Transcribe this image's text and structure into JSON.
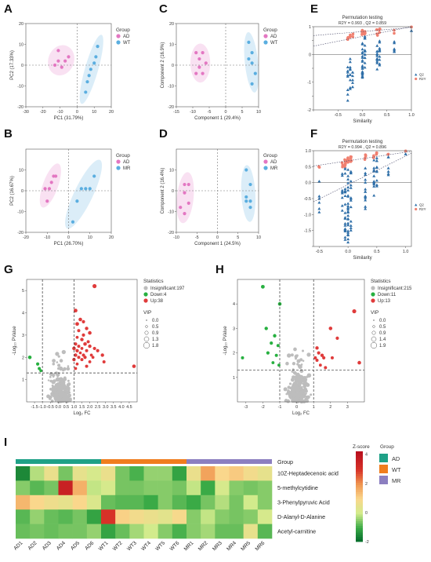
{
  "panels": {
    "A": "A",
    "B": "B",
    "C": "C",
    "D": "D",
    "E": "E",
    "F": "F",
    "G": "G",
    "H": "H",
    "I": "I"
  },
  "colors": {
    "AD": "#e377c2",
    "WT": "#5aaee0",
    "MR": "#5aaee0",
    "up": "#e03b3b",
    "down": "#27b040",
    "insig": "#bdbdbd",
    "q2": "#2f6fa8",
    "r2y": "#f08070",
    "grpAD": "#1fa187",
    "grpWT": "#f07d1e",
    "grpMR": "#8c7fc0"
  },
  "chart_data": [
    {
      "id": "A",
      "type": "scatter",
      "xlabel": "PC1 (31.79%)",
      "ylabel": "PC2 (17.33%)",
      "xlim": [
        -30,
        20
      ],
      "ylim": [
        -20,
        20
      ],
      "xticks": [
        -30,
        -20,
        -10,
        0,
        10,
        20
      ],
      "yticks": [
        -20,
        -10,
        0,
        10,
        20
      ],
      "legend_title": "Group",
      "legend": [
        "AD",
        "WT"
      ],
      "series": [
        {
          "name": "AD",
          "x": [
            -13,
            -11,
            -7,
            -5,
            -9,
            -11
          ],
          "y": [
            0,
            2,
            2,
            4,
            -1,
            7
          ]
        },
        {
          "name": "WT",
          "x": [
            5,
            6,
            7,
            8,
            10,
            11,
            12
          ],
          "y": [
            -13,
            -8,
            -5,
            -2,
            1,
            4,
            9
          ]
        }
      ]
    },
    {
      "id": "B",
      "type": "scatter",
      "xlabel": "PC1 (26.70%)",
      "ylabel": "PC2 (16.67%)",
      "xlim": [
        -20,
        20
      ],
      "ylim": [
        -20,
        20
      ],
      "xticks": [
        -20,
        -10,
        0,
        10,
        20
      ],
      "yticks": [
        -20,
        -10,
        0,
        10
      ],
      "legend_title": "Group",
      "legend": [
        "AD",
        "MR"
      ],
      "series": [
        {
          "name": "AD",
          "x": [
            -11,
            -8,
            -7,
            -10,
            -9,
            -6
          ],
          "y": [
            1,
            4,
            7,
            -5,
            1,
            7
          ]
        },
        {
          "name": "MR",
          "x": [
            2,
            4,
            6,
            8,
            10,
            12
          ],
          "y": [
            -15,
            -5,
            1,
            1,
            1,
            7
          ]
        }
      ]
    },
    {
      "id": "C",
      "type": "scatter",
      "xlabel": "Component 1 (29.4%)",
      "ylabel": "Component 2 (16.9%)",
      "xlim": [
        -15,
        10
      ],
      "ylim": [
        -20,
        20
      ],
      "xticks": [
        -15,
        -10,
        -5,
        0,
        5,
        10
      ],
      "yticks": [
        -20,
        -10,
        0,
        10,
        20
      ],
      "legend_title": "Group",
      "legend": [
        "AD",
        "WT"
      ],
      "series": [
        {
          "name": "AD",
          "x": [
            -9,
            -8,
            -8,
            -7,
            -7,
            -6,
            -9
          ],
          "y": [
            6,
            3,
            -1,
            6,
            -4,
            1,
            -4
          ]
        },
        {
          "name": "WT",
          "x": [
            7,
            8,
            7,
            8,
            9,
            8
          ],
          "y": [
            11,
            6,
            3,
            1,
            -4,
            -9
          ]
        }
      ]
    },
    {
      "id": "D",
      "type": "scatter",
      "xlabel": "Component 1 (24.5%)",
      "ylabel": "Component 2 (16.4%)",
      "xlim": [
        -10,
        10
      ],
      "ylim": [
        -20,
        20
      ],
      "xticks": [
        -10,
        -5,
        0,
        5,
        10
      ],
      "yticks": [
        -20,
        -10,
        0,
        10
      ],
      "legend_title": "Group",
      "legend": [
        "AD",
        "MR"
      ],
      "series": [
        {
          "name": "AD",
          "x": [
            -8,
            -7,
            -8,
            -7,
            -8,
            -9
          ],
          "y": [
            3,
            3,
            -1,
            -6,
            -11,
            -8
          ]
        },
        {
          "name": "MR",
          "x": [
            7,
            8,
            7,
            8,
            8,
            7
          ],
          "y": [
            10,
            3,
            -3,
            -5,
            -8,
            -5
          ]
        }
      ]
    },
    {
      "id": "E",
      "type": "scatter",
      "title": "Permutation testing",
      "subtitle": "R2Y = 0.993 , Q2 = 0.859",
      "xlabel": "Similarity",
      "xlim": [
        -1,
        1
      ],
      "ylim": [
        -2,
        1
      ],
      "xticks": [
        -1,
        -0.5,
        0,
        0.5,
        1
      ],
      "xticklabels": [
        "",
        "-0.5",
        "0.0",
        "0.5",
        "1.0"
      ],
      "yticks": [
        -2,
        -1.5,
        -1,
        -0.5,
        0,
        0.5,
        1
      ],
      "yticklabels": [
        "-2",
        "",
        "-1",
        "",
        "0",
        "",
        "1"
      ],
      "legend": [
        "Q2",
        "R2Y"
      ]
    },
    {
      "id": "F",
      "type": "scatter",
      "title": "Permutation testing",
      "subtitle": "R2Y = 0.994 , Q2 = 0.896",
      "xlabel": "Similarity",
      "xlim": [
        -0.6,
        1.1
      ],
      "ylim": [
        -2,
        1
      ],
      "xticks": [
        -0.5,
        0,
        0.5,
        1
      ],
      "xticklabels": [
        "-0.5",
        "0.0",
        "0.5",
        "1.0"
      ],
      "yticks": [
        -2,
        -1.5,
        -1,
        -0.5,
        0,
        0.5,
        1
      ],
      "yticklabels": [
        "",
        "-1.5",
        "-1.0",
        "-0.5",
        "0.0",
        "0.5",
        "1.0"
      ],
      "legend": [
        "Q2",
        "R2Y"
      ]
    },
    {
      "id": "G",
      "type": "scatter",
      "xlabel": "Log₂ FC",
      "ylabel": "-Log₁₀ PValue",
      "xlim": [
        -2,
        5
      ],
      "ylim": [
        0,
        5.5
      ],
      "xticks": [
        -1.5,
        -1,
        -0.5,
        0,
        0.5,
        1,
        1.5,
        2,
        2.5,
        3,
        3.5,
        4,
        4.5
      ],
      "xticklabels": [
        "-1.5",
        "-1.0",
        "-0.5",
        "0.0",
        "0.5",
        "1.0",
        "1.5",
        "2.0",
        "2.5",
        "3.0",
        "3.5",
        "4.0",
        "4.5"
      ],
      "yticks": [
        1,
        2,
        3,
        4,
        5
      ],
      "vlines": [
        -1,
        1
      ],
      "hline": 1.3,
      "legend_title": "Statistics",
      "legend": [
        "Insignificant:197",
        "Down:4",
        "Up:38"
      ],
      "vip_title": "VIP",
      "vip": [
        "0.0",
        "0.5",
        "0.9",
        "1.3",
        "1.8"
      ],
      "n_insig": 197,
      "n_down": 4,
      "n_up": 38
    },
    {
      "id": "H",
      "type": "scatter",
      "xlabel": "Log₂ FC",
      "ylabel": "-Log₁₀ PValue",
      "xlim": [
        -3.5,
        4
      ],
      "ylim": [
        0,
        5
      ],
      "xticks": [
        -3,
        -2,
        -1,
        0,
        1,
        2,
        3
      ],
      "yticks": [
        1,
        2,
        3,
        4
      ],
      "vlines": [
        -1,
        1
      ],
      "hline": 1.3,
      "legend_title": "Statistics",
      "legend": [
        "Insignificant:215",
        "Down:11",
        "Up:13"
      ],
      "vip_title": "VIP",
      "vip": [
        "0.0",
        "0.5",
        "0.9",
        "1.4",
        "1.9"
      ],
      "n_insig": 215,
      "n_down": 11,
      "n_up": 13
    },
    {
      "id": "I",
      "type": "heatmap",
      "rows": [
        "10Z-Heptadecenoic acid",
        "5-methylcytidine",
        "3-Phenylpyruvic Acid",
        "D-Alanyl-D-Alanine",
        "Acetyl-carnitine"
      ],
      "columns": [
        "AD1",
        "AD2",
        "AD3",
        "AD4",
        "AD5",
        "AD6",
        "WT1",
        "WT2",
        "WT3",
        "WT4",
        "WT5",
        "WT6",
        "MR1",
        "MR2",
        "MR3",
        "MR4",
        "MR5",
        "MR6"
      ],
      "group_label": "Group",
      "groups": [
        "AD",
        "WT",
        "MR"
      ],
      "colorbar_title": "Z-score",
      "colorbar_ticks": [
        "4",
        "2",
        "0",
        "-2"
      ],
      "zlim": [
        -2,
        4.2
      ],
      "values": [
        [
          -1.5,
          -0.2,
          0.6,
          -0.6,
          0.5,
          0.1,
          0.6,
          -0.6,
          -0.9,
          -0.4,
          -0.4,
          -1.1,
          0.6,
          1.8,
          1.0,
          1.2,
          0.8,
          0.5
        ],
        [
          -0.5,
          -0.8,
          -0.6,
          3.6,
          1.6,
          -0.1,
          0.1,
          -0.6,
          -0.6,
          -0.5,
          -0.5,
          -0.6,
          -0.1,
          -1.0,
          0.1,
          -0.5,
          -0.6,
          -0.5
        ],
        [
          1.5,
          1.0,
          0.7,
          0.5,
          1.0,
          0.2,
          -0.7,
          -0.8,
          -0.8,
          -1.0,
          -0.5,
          -0.8,
          -1.0,
          -0.6,
          -0.2,
          -0.6,
          0.0,
          -0.5
        ],
        [
          -0.8,
          -0.4,
          -0.7,
          -0.8,
          -0.6,
          -1.1,
          3.0,
          1.1,
          0.8,
          0.6,
          0.4,
          0.9,
          -0.5,
          -0.1,
          -0.5,
          -0.6,
          -0.5,
          0.1
        ],
        [
          -0.7,
          -0.6,
          -0.7,
          -0.6,
          -0.6,
          -0.4,
          -1.1,
          -0.7,
          -0.3,
          0.0,
          -0.5,
          -0.9,
          -0.5,
          -0.3,
          -0.7,
          -0.7,
          0.5,
          -0.8
        ]
      ]
    }
  ]
}
